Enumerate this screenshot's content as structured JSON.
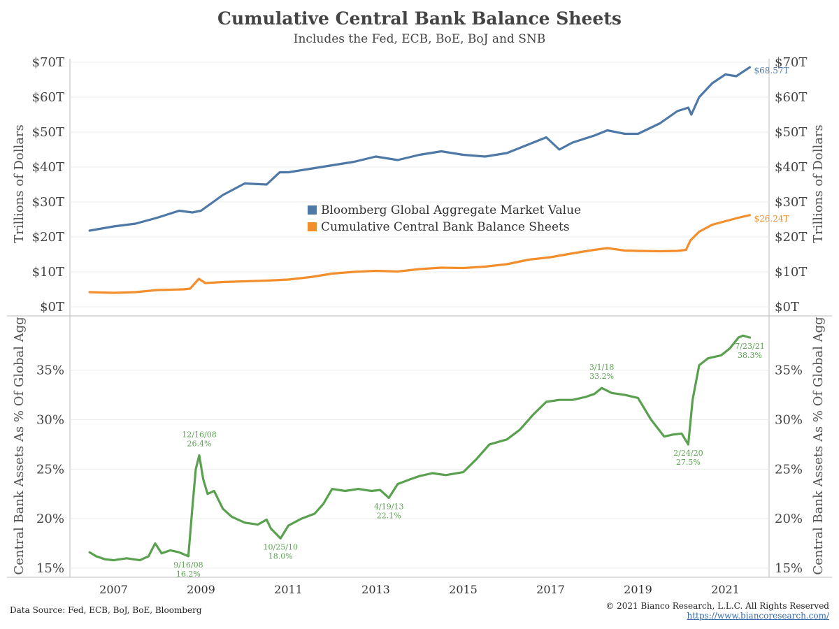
{
  "header": {
    "title": "Cumulative Central Bank Balance Sheets",
    "subtitle": "Includes the Fed, ECB, BoE, BoJ and SNB"
  },
  "footer": {
    "source": "Data Source: Fed, ECB, BoJ, BoE, Bloomberg",
    "copyright": "© 2021 Bianco Research, L.L.C. All Rights Reserved",
    "url": "https://www.biancoresearch.com/"
  },
  "colors": {
    "blue": "#4e79a7",
    "orange": "#f28e2b",
    "green": "#59a14f",
    "grid": "#ececec",
    "axis": "#bbbbbb"
  },
  "chart_data": [
    {
      "type": "line",
      "ylabel": "Trillions of Dollars",
      "ylim": [
        0,
        70
      ],
      "yticks": [
        0,
        10,
        20,
        30,
        40,
        50,
        60,
        70
      ],
      "yticklabels": [
        "$0T",
        "$10T",
        "$20T",
        "$30T",
        "$40T",
        "$50T",
        "$60T",
        "$70T"
      ],
      "legend": {
        "placement": "center"
      },
      "series": [
        {
          "name": "Bloomberg Global Aggregate Market Value",
          "color": "#4e79a7",
          "end_label": "$68.57T",
          "x": [
            2006.45,
            2007.0,
            2007.5,
            2008.0,
            2008.5,
            2008.8,
            2009.0,
            2009.5,
            2010.0,
            2010.5,
            2010.8,
            2011.0,
            2011.5,
            2012.0,
            2012.5,
            2013.0,
            2013.5,
            2014.0,
            2014.5,
            2015.0,
            2015.5,
            2016.0,
            2016.5,
            2016.9,
            2017.2,
            2017.5,
            2018.0,
            2018.3,
            2018.7,
            2019.0,
            2019.5,
            2019.9,
            2020.15,
            2020.22,
            2020.4,
            2020.7,
            2021.0,
            2021.25,
            2021.56
          ],
          "y": [
            21.8,
            23.0,
            23.8,
            25.5,
            27.5,
            27.0,
            27.5,
            32.0,
            35.3,
            35.0,
            38.5,
            38.5,
            39.5,
            40.5,
            41.5,
            43.0,
            42.0,
            43.5,
            44.5,
            43.5,
            43.0,
            44.0,
            46.5,
            48.5,
            45.0,
            47.0,
            49.0,
            50.5,
            49.5,
            49.5,
            52.5,
            56.0,
            57.0,
            55.0,
            60.0,
            64.0,
            66.5,
            66.0,
            68.57
          ]
        },
        {
          "name": "Cumulative Central Bank Balance Sheets",
          "color": "#f28e2b",
          "end_label": "$26.24T",
          "x": [
            2006.45,
            2007.0,
            2007.5,
            2008.0,
            2008.6,
            2008.75,
            2008.95,
            2009.1,
            2009.5,
            2010.0,
            2010.5,
            2011.0,
            2011.5,
            2012.0,
            2012.5,
            2013.0,
            2013.5,
            2014.0,
            2014.5,
            2015.0,
            2015.5,
            2016.0,
            2016.5,
            2017.0,
            2017.5,
            2018.0,
            2018.3,
            2018.7,
            2019.0,
            2019.5,
            2019.9,
            2020.1,
            2020.2,
            2020.4,
            2020.7,
            2021.0,
            2021.3,
            2021.56
          ],
          "y": [
            4.2,
            4.0,
            4.2,
            4.8,
            5.0,
            5.2,
            8.0,
            6.8,
            7.1,
            7.3,
            7.5,
            7.8,
            8.5,
            9.5,
            10.0,
            10.3,
            10.1,
            10.8,
            11.2,
            11.1,
            11.5,
            12.2,
            13.5,
            14.2,
            15.3,
            16.3,
            16.8,
            16.1,
            16.0,
            15.9,
            16.0,
            16.3,
            19.0,
            21.5,
            23.5,
            24.5,
            25.5,
            26.24
          ]
        }
      ]
    },
    {
      "type": "line",
      "ylabel": "Central Bank Assets As % Of Global Agg",
      "ylim": [
        14.5,
        39.5
      ],
      "yticks": [
        15,
        20,
        25,
        30,
        35
      ],
      "yticklabels": [
        "15%",
        "20%",
        "25%",
        "30%",
        "35%"
      ],
      "xticks": [
        2007,
        2009,
        2011,
        2013,
        2015,
        2017,
        2019,
        2021
      ],
      "xticklabels": [
        "2007",
        "2009",
        "2011",
        "2013",
        "2015",
        "2017",
        "2019",
        "2021"
      ],
      "series": [
        {
          "color": "#59a14f",
          "x": [
            2006.45,
            2006.6,
            2006.8,
            2007.0,
            2007.3,
            2007.6,
            2007.8,
            2007.95,
            2008.1,
            2008.3,
            2008.5,
            2008.71,
            2008.8,
            2008.88,
            2008.96,
            2009.05,
            2009.15,
            2009.3,
            2009.5,
            2009.7,
            2010.0,
            2010.3,
            2010.5,
            2010.6,
            2010.82,
            2011.0,
            2011.3,
            2011.6,
            2011.8,
            2012.0,
            2012.3,
            2012.6,
            2012.9,
            2013.1,
            2013.3,
            2013.5,
            2013.8,
            2014.0,
            2014.3,
            2014.6,
            2015.0,
            2015.3,
            2015.6,
            2016.0,
            2016.3,
            2016.6,
            2016.9,
            2017.2,
            2017.5,
            2017.8,
            2018.0,
            2018.17,
            2018.4,
            2018.7,
            2019.0,
            2019.3,
            2019.6,
            2019.8,
            2020.0,
            2020.08,
            2020.15,
            2020.25,
            2020.4,
            2020.6,
            2020.9,
            2021.1,
            2021.3,
            2021.4,
            2021.56
          ],
          "y": [
            16.6,
            16.2,
            15.9,
            15.8,
            16.0,
            15.8,
            16.2,
            17.5,
            16.5,
            16.8,
            16.6,
            16.2,
            21.0,
            25.0,
            26.4,
            24.0,
            22.5,
            22.8,
            21.0,
            20.2,
            19.6,
            19.4,
            19.9,
            19.0,
            18.0,
            19.3,
            20.0,
            20.5,
            21.5,
            23.0,
            22.8,
            23.0,
            22.8,
            22.9,
            22.1,
            23.5,
            24.0,
            24.3,
            24.6,
            24.4,
            24.7,
            26.0,
            27.5,
            28.0,
            29.0,
            30.5,
            31.8,
            32.0,
            32.0,
            32.3,
            32.6,
            33.2,
            32.7,
            32.5,
            32.2,
            30.0,
            28.3,
            28.5,
            28.6,
            28.0,
            27.5,
            32.0,
            35.5,
            36.2,
            36.5,
            37.2,
            38.3,
            38.5,
            38.3
          ]
        }
      ],
      "annotations": [
        {
          "date": "12/16/08",
          "value": "26.4%",
          "x": 2008.96,
          "y": 26.4,
          "pos": "above"
        },
        {
          "date": "9/16/08",
          "value": "16.2%",
          "x": 2008.71,
          "y": 16.2,
          "pos": "below"
        },
        {
          "date": "10/25/10",
          "value": "18.0%",
          "x": 2010.82,
          "y": 18.0,
          "pos": "below"
        },
        {
          "date": "4/19/13",
          "value": "22.1%",
          "x": 2013.3,
          "y": 22.1,
          "pos": "below"
        },
        {
          "date": "3/1/18",
          "value": "33.2%",
          "x": 2018.17,
          "y": 33.2,
          "pos": "above"
        },
        {
          "date": "2/24/20",
          "value": "27.5%",
          "x": 2020.15,
          "y": 27.5,
          "pos": "below"
        },
        {
          "date": "7/23/21",
          "value": "38.3%",
          "x": 2021.56,
          "y": 38.3,
          "pos": "below"
        }
      ]
    }
  ]
}
